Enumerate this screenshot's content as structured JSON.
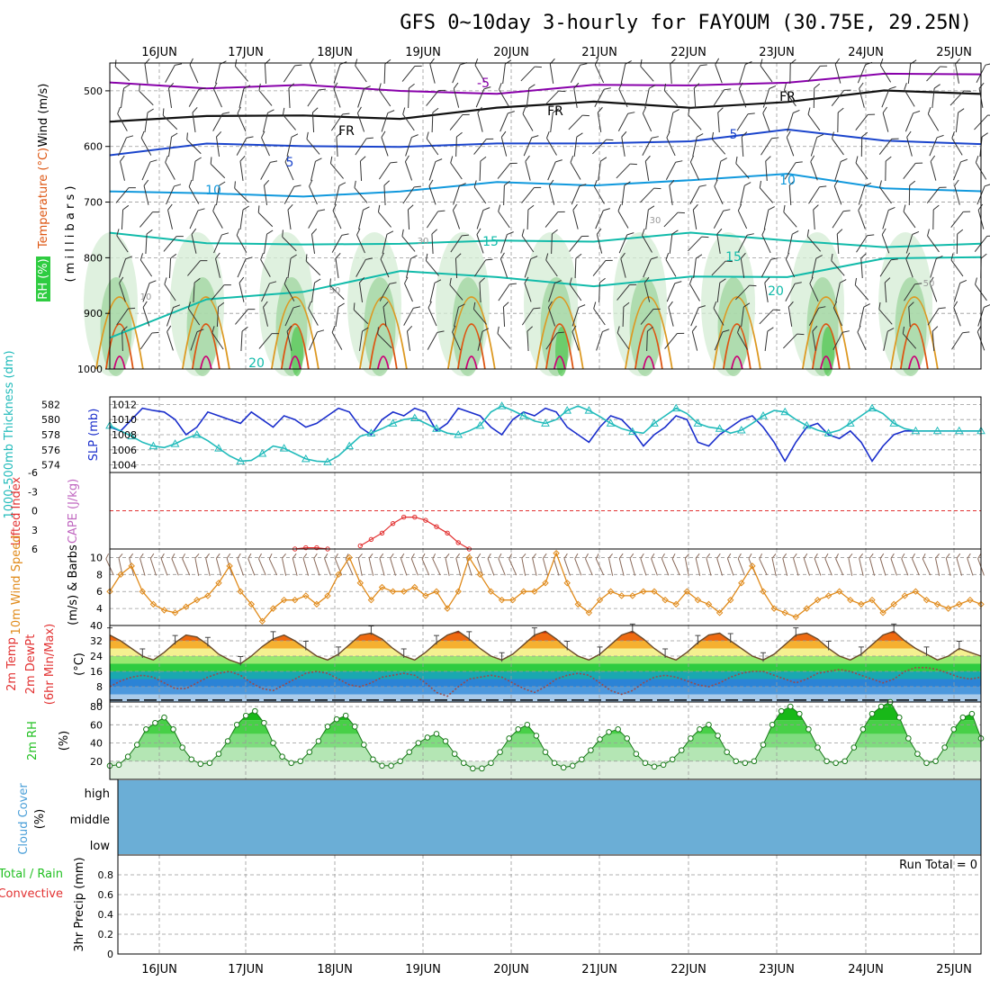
{
  "chart_data": {
    "type": "line",
    "title": "GFS 0~10day 3-hourly for FAYOUM (30.75E, 29.25N)",
    "dates": [
      "16JUN",
      "17JUN",
      "18JUN",
      "19JUN",
      "20JUN",
      "21JUN",
      "22JUN",
      "23JUN",
      "24JUN",
      "25JUN"
    ],
    "colors": {
      "temp_min5": "#8800aa",
      "freezing": "#111111",
      "temp5": "#1a44cc",
      "temp10": "#1199dd",
      "temp15": "#11bbaa",
      "temp25": "#dd9922",
      "temp30": "#dd5511",
      "temp35": "#cc0077",
      "rh_light": "#d4ecd4",
      "rh_mid": "#9fd49f",
      "rh_dark": "#55c855",
      "slp": "#1a2ecc",
      "thickness": "#22bbbb",
      "li": "#e23232",
      "wind10m": "#e08a1a",
      "dewpt": "#9a4a4a",
      "rh2m": "#22c022",
      "cloud": "#6baed6"
    },
    "panels": [
      {
        "name": "upper-air",
        "ylabel_parts": [
          "RH (%)",
          "Temperature (°C)",
          "Wind (m/s)"
        ],
        "ylabel2": "( m i l l i b a r s )",
        "yticks": [
          500,
          600,
          700,
          800,
          900,
          1000
        ],
        "ylim": [
          450,
          1000
        ],
        "contour_labels": [
          "-5",
          "FR",
          "FR",
          "FR",
          "5",
          "5",
          "10",
          "10",
          "15",
          "15",
          "20",
          "20",
          "10",
          "30",
          "50",
          "30",
          "50"
        ],
        "isotherms": [
          {
            "name": "-5",
            "values": [
              485,
              490,
              495,
              500,
              500,
              495,
              490,
              480,
              475,
              470
            ]
          },
          {
            "name": "FR",
            "values": [
              550,
              545,
              550,
              545,
              530,
              525,
              525,
              520,
              505,
              500
            ]
          },
          {
            "name": "5",
            "values": [
              610,
              600,
              600,
              595,
              600,
              595,
              585,
              575,
              590,
              590
            ]
          },
          {
            "name": "10",
            "values": [
              680,
              690,
              685,
              680,
              670,
              665,
              660,
              655,
              670,
              680
            ]
          },
          {
            "name": "15",
            "values": [
              760,
              775,
              770,
              780,
              770,
              765,
              760,
              770,
              775,
              780
            ]
          },
          {
            "name": "20",
            "values": [
              950,
              870,
              860,
              830,
              830,
              850,
              840,
              830,
              800,
              805
            ]
          }
        ]
      },
      {
        "name": "slp-thickness",
        "ylabel_left": "1000-500mb Thickness (dm)",
        "ylabel_right": "SLP (mb)",
        "yticks_left": [
          574,
          576,
          578,
          580,
          582
        ],
        "yticks_right": [
          1004,
          1006,
          1008,
          1010,
          1012
        ],
        "ylim_right": [
          1003,
          1013
        ],
        "series": [
          {
            "name": "SLP",
            "values": [
              1009,
              1008.5,
              1010,
              1011.5,
              1011.2,
              1011,
              1010,
              1008,
              1009,
              1011,
              1010.5,
              1010,
              1009.5,
              1011,
              1010,
              1009,
              1010.5,
              1010,
              1009,
              1009.5,
              1010.5,
              1011.5,
              1011,
              1009,
              1008,
              1010,
              1011,
              1010.5,
              1011.5,
              1011,
              1008.5,
              1009.5,
              1011.5,
              1011,
              1010.5,
              1009,
              1008,
              1010,
              1011,
              1010.5,
              1011.5,
              1011,
              1009,
              1008,
              1007,
              1009,
              1010.5,
              1010,
              1008.5,
              1006.5,
              1008,
              1009,
              1010.5,
              1010,
              1007,
              1006.5,
              1008,
              1009,
              1010,
              1010.5,
              1009,
              1007,
              1004.5,
              1007,
              1009,
              1009.5,
              1008,
              1007.5,
              1008.5,
              1007,
              1004.5,
              1006.5,
              1008,
              1008.5,
              1008.5,
              1008.5,
              1008.5,
              1008.5,
              1008.5,
              1008.5,
              1008.5
            ]
          },
          {
            "name": "Thickness",
            "values": [
              1009.2,
              1008.5,
              1007.8,
              1007,
              1006.5,
              1006.3,
              1006.8,
              1007.5,
              1008,
              1007.2,
              1006.2,
              1005.2,
              1004.5,
              1004.6,
              1005.5,
              1006.5,
              1006.2,
              1005.5,
              1004.8,
              1004.5,
              1004.4,
              1005.2,
              1006.5,
              1007.8,
              1008.2,
              1008.8,
              1009.5,
              1010,
              1010.2,
              1009.5,
              1008.8,
              1008.2,
              1008,
              1008.5,
              1009.2,
              1011,
              1011.8,
              1011.2,
              1010.5,
              1009.8,
              1009.5,
              1010,
              1011.2,
              1011.8,
              1011.2,
              1010.4,
              1009.5,
              1008.8,
              1008.4,
              1008.2,
              1009.5,
              1010.5,
              1011.5,
              1010.8,
              1009.5,
              1009,
              1008.8,
              1008.2,
              1008.6,
              1009.5,
              1010.5,
              1011.2,
              1011,
              1010,
              1009.2,
              1008.6,
              1008.2,
              1008.6,
              1009.5,
              1010.5,
              1011.5,
              1010.8,
              1009.5,
              1008.8,
              1008.5,
              1008.5,
              1008.5,
              1008.5,
              1008.5,
              1008.5,
              1008.5
            ]
          }
        ]
      },
      {
        "name": "lifted-index",
        "ylabel_left": "Lifted Index",
        "ylabel_right": "CAPE (J/kg)",
        "yticks": [
          -6,
          -3,
          0,
          3,
          6
        ],
        "ylim": [
          -6,
          6
        ],
        "series": [
          {
            "name": "Lifted Index",
            "values": [
              null,
              null,
              null,
              null,
              null,
              null,
              null,
              null,
              null,
              null,
              null,
              null,
              null,
              null,
              null,
              null,
              null,
              6,
              5.8,
              5.8,
              6,
              null,
              null,
              5.5,
              4.5,
              3.5,
              2,
              1,
              1,
              1.5,
              2.5,
              3.5,
              5,
              6,
              null,
              null,
              null,
              null,
              null,
              null,
              null,
              null,
              null,
              null,
              null,
              null,
              null,
              null,
              null,
              null,
              null,
              null,
              null,
              null,
              null,
              null,
              null,
              null,
              null,
              null,
              null,
              null,
              null,
              null,
              null,
              null,
              null,
              null,
              null,
              null,
              null,
              null,
              null,
              null,
              null,
              null,
              null,
              null,
              null,
              null,
              null
            ]
          }
        ]
      },
      {
        "name": "wind-10m",
        "ylabel_left": "10m Wind Speed",
        "ylabel_right": "(m/s) & Barbs",
        "yticks": [
          4,
          6,
          8,
          10
        ],
        "ylim": [
          2,
          11
        ],
        "series": [
          {
            "name": "10m Wind",
            "values": [
              6,
              8,
              9,
              6,
              4.5,
              3.8,
              3.5,
              4.2,
              5,
              5.5,
              7,
              9,
              6,
              4.5,
              2.5,
              4,
              5,
              5,
              5.5,
              4.5,
              5.5,
              8,
              10,
              7,
              5,
              6.5,
              6,
              6,
              6.5,
              5.5,
              6,
              4,
              6,
              10,
              8,
              6,
              5,
              5,
              6,
              6,
              7,
              10.5,
              7,
              4.5,
              3.5,
              5,
              6,
              5.5,
              5.5,
              6,
              6,
              5,
              4.5,
              6,
              5,
              4.5,
              3.5,
              5,
              7,
              9,
              6,
              4,
              3.5,
              3,
              4,
              5,
              5.5,
              6,
              5,
              4.5,
              5,
              3.5,
              4.5,
              5.5,
              6,
              5,
              4.5,
              4,
              4.5,
              5,
              4.5
            ]
          }
        ]
      },
      {
        "name": "temp-2m",
        "ylabel_parts": [
          "2m Temp",
          "2m DewPt",
          "(6hr Min/Max)"
        ],
        "ylabel_right": "(°C)",
        "yticks": [
          0,
          8,
          16,
          24,
          32,
          40
        ],
        "ylim": [
          0,
          40
        ],
        "series": [
          {
            "name": "2m Temp",
            "values": [
              35,
              32,
              28,
              24,
              22,
              26,
              31,
              35,
              34,
              30,
              25,
              22,
              20,
              24,
              29,
              33,
              35,
              32,
              28,
              24,
              22,
              25,
              30,
              35,
              36,
              33,
              28,
              24,
              22,
              26,
              31,
              35,
              37,
              33,
              28,
              24,
              22,
              25,
              30,
              35,
              37,
              33,
              28,
              24,
              22,
              25,
              30,
              35,
              37,
              33,
              28,
              24,
              22,
              26,
              31,
              35,
              36,
              32,
              28,
              24,
              22,
              25,
              30,
              35,
              36,
              33,
              28,
              24,
              22,
              25,
              30,
              35,
              37,
              32,
              28,
              25,
              22,
              24,
              28,
              26,
              24
            ]
          },
          {
            "name": "2m DewPt",
            "values": [
              8,
              11,
              13,
              14,
              13,
              10,
              7,
              7,
              10,
              13,
              15,
              16,
              14,
              10,
              7,
              6,
              9,
              12,
              15,
              16,
              15,
              12,
              9,
              8,
              10,
              13,
              14,
              15,
              14,
              10,
              5,
              3,
              8,
              12,
              13,
              14,
              13,
              10,
              7,
              5,
              8,
              12,
              14,
              15,
              14,
              10,
              6,
              4,
              6,
              10,
              13,
              14,
              13,
              11,
              9,
              8,
              10,
              13,
              15,
              16,
              16,
              14,
              12,
              10,
              12,
              15,
              16,
              17,
              16,
              14,
              12,
              10,
              12,
              16,
              18,
              18,
              17,
              15,
              13,
              12,
              13
            ]
          }
        ]
      },
      {
        "name": "rh-2m",
        "ylabel_left": "2m RH",
        "ylabel_right": "(%)",
        "yticks": [
          20,
          40,
          60,
          80
        ],
        "ylim": [
          0,
          85
        ],
        "series": [
          {
            "name": "2m RH",
            "values": [
              15,
              16,
              25,
              38,
              55,
              62,
              68,
              55,
              35,
              22,
              17,
              18,
              28,
              42,
              60,
              70,
              75,
              62,
              40,
              25,
              18,
              20,
              30,
              42,
              58,
              66,
              70,
              58,
              38,
              22,
              15,
              15,
              20,
              30,
              40,
              46,
              50,
              42,
              28,
              18,
              12,
              12,
              18,
              30,
              45,
              55,
              60,
              48,
              30,
              18,
              13,
              15,
              22,
              32,
              44,
              52,
              55,
              45,
              28,
              18,
              14,
              16,
              22,
              32,
              45,
              55,
              60,
              48,
              30,
              20,
              18,
              20,
              38,
              60,
              75,
              80,
              72,
              55,
              35,
              20,
              18,
              20,
              35,
              55,
              72,
              80,
              85,
              68,
              45,
              28,
              18,
              20,
              35,
              55,
              68,
              72,
              45
            ]
          }
        ]
      },
      {
        "name": "cloud-cover",
        "ylabel_left": "Cloud Cover",
        "ylabel_right": "(%)",
        "levels": [
          "high",
          "middle",
          "low"
        ]
      },
      {
        "name": "precip",
        "ylabel_left": "Total / Rain",
        "ylabel_left2": "Convective",
        "ylabel_right": "3hr Precip (mm)",
        "yticks": [
          0,
          0.2,
          0.4,
          0.6,
          0.8
        ],
        "ylim": [
          0,
          1
        ],
        "run_total": "Run Total = 0"
      }
    ]
  }
}
